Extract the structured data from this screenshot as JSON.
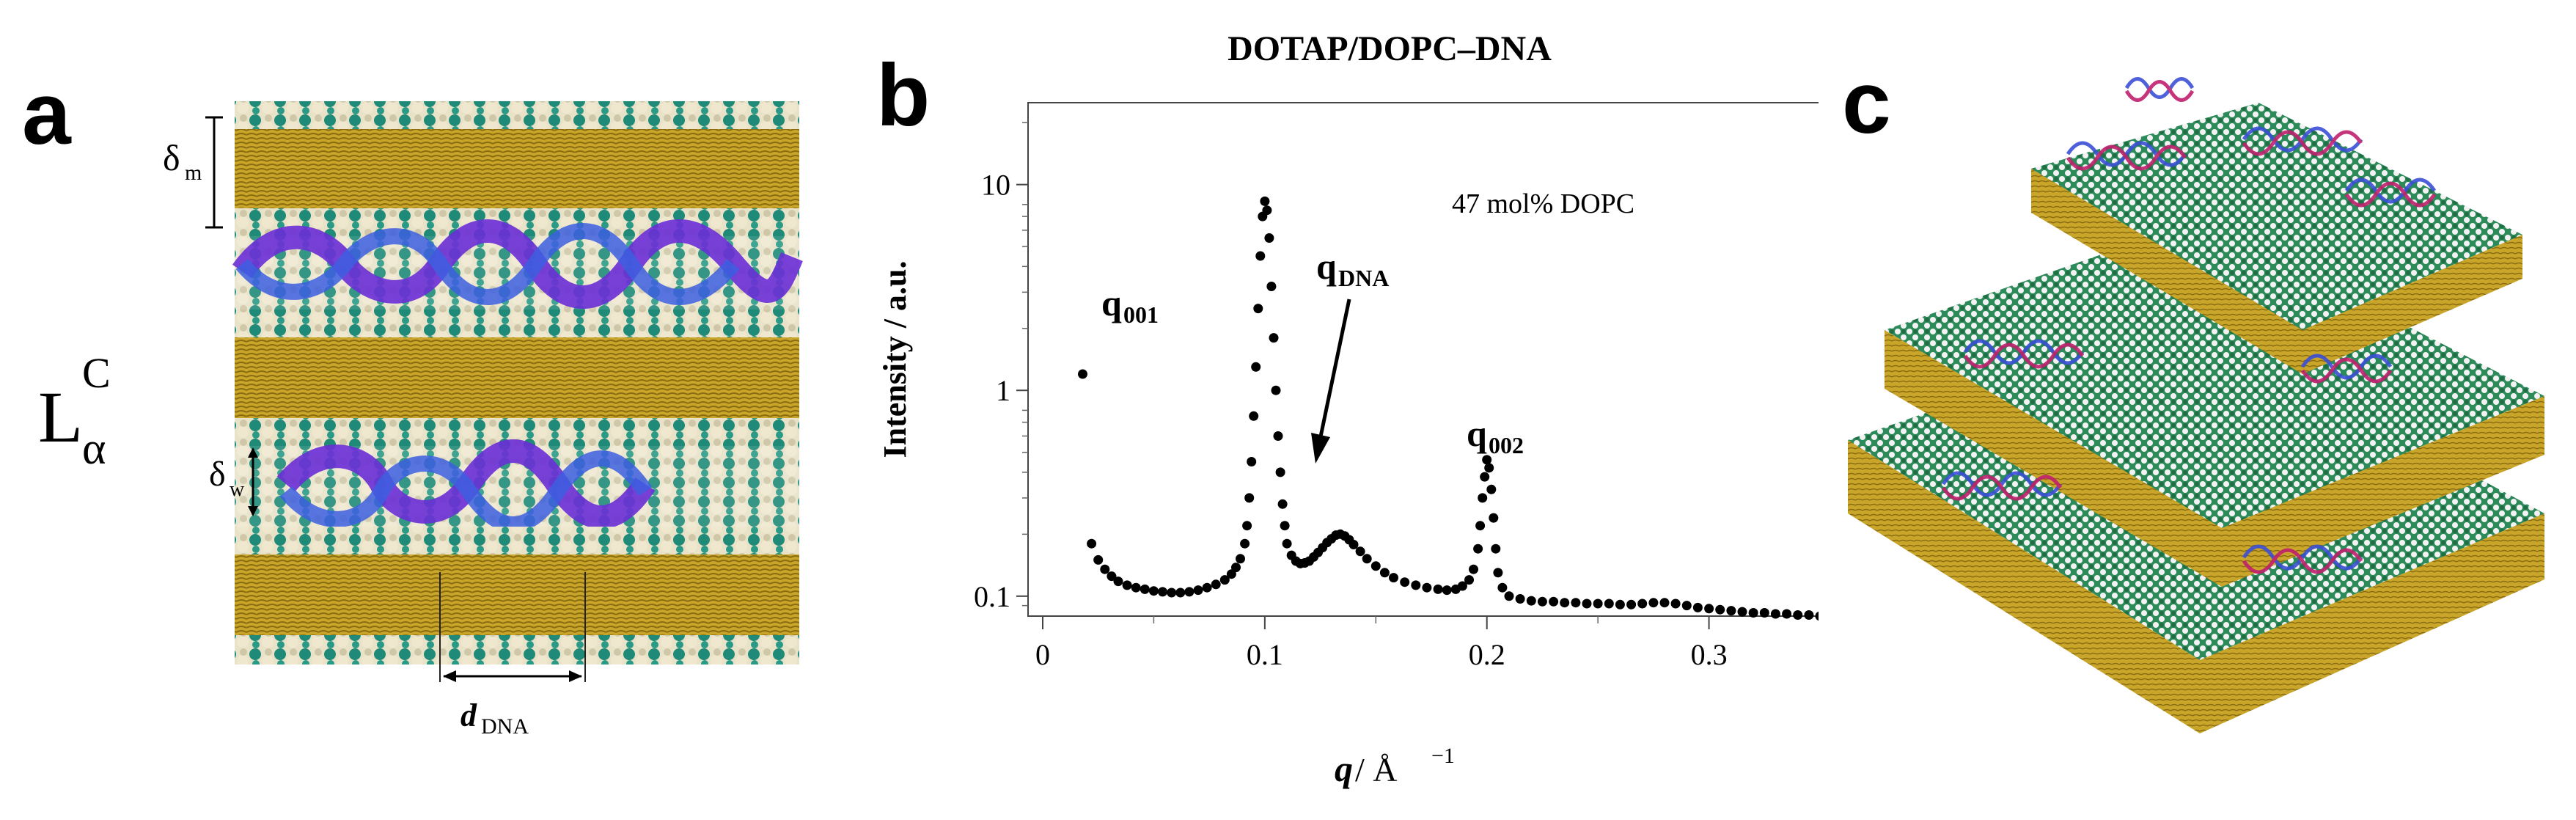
{
  "panels": {
    "a": {
      "letter": "a",
      "phase_main": "L",
      "phase_sub": "α",
      "phase_sup": "C",
      "delta_m_main": "δ",
      "delta_m_sub": "m",
      "delta_w_main": "δ",
      "delta_w_sub": "w",
      "d_dna_main": "d",
      "d_dna_sub": "DNA"
    },
    "b": {
      "letter": "b",
      "title": "DOTAP/DOPC–DNA",
      "annotation": "47 mol% DOPC",
      "peak_q001_main": "q",
      "peak_q001_sub": "001",
      "peak_qdna_main": "q",
      "peak_qdna_sub": "DNA",
      "peak_q002_main": "q",
      "peak_q002_sub": "002",
      "ylabel": "Intensity / a.u.",
      "xlabel_main": "q",
      "xlabel_unit": " / Å",
      "xlabel_exp": "−1"
    },
    "c": {
      "letter": "c"
    }
  },
  "chart_data": {
    "type": "scatter",
    "title": "DOTAP/DOPC–DNA",
    "xlabel": "q / Å−1",
    "ylabel": "Intensity / a.u.",
    "yscale": "log",
    "xlim": [
      0,
      0.35
    ],
    "ylim": [
      0.08,
      25
    ],
    "x_ticks": [
      "0",
      "0.1",
      "0.2",
      "0.3"
    ],
    "y_ticks": [
      "0.1",
      "1",
      "10"
    ],
    "annotations": [
      "47 mol% DOPC",
      "q001",
      "qDNA",
      "q002"
    ],
    "series": [
      {
        "points": [
          [
            0.018,
            1.2
          ],
          [
            0.022,
            0.18
          ],
          [
            0.025,
            0.15
          ],
          [
            0.028,
            0.135
          ],
          [
            0.031,
            0.125
          ],
          [
            0.034,
            0.118
          ],
          [
            0.038,
            0.113
          ],
          [
            0.042,
            0.11
          ],
          [
            0.046,
            0.108
          ],
          [
            0.05,
            0.106
          ],
          [
            0.054,
            0.105
          ],
          [
            0.058,
            0.104
          ],
          [
            0.062,
            0.104
          ],
          [
            0.066,
            0.105
          ],
          [
            0.07,
            0.107
          ],
          [
            0.074,
            0.11
          ],
          [
            0.078,
            0.114
          ],
          [
            0.082,
            0.12
          ],
          [
            0.085,
            0.128
          ],
          [
            0.087,
            0.138
          ],
          [
            0.089,
            0.152
          ],
          [
            0.091,
            0.18
          ],
          [
            0.092,
            0.22
          ],
          [
            0.093,
            0.3
          ],
          [
            0.094,
            0.45
          ],
          [
            0.095,
            0.75
          ],
          [
            0.096,
            1.3
          ],
          [
            0.097,
            2.5
          ],
          [
            0.098,
            4.5
          ],
          [
            0.099,
            7.0
          ],
          [
            0.1,
            8.3
          ],
          [
            0.101,
            7.5
          ],
          [
            0.102,
            5.5
          ],
          [
            0.103,
            3.2
          ],
          [
            0.104,
            1.8
          ],
          [
            0.105,
            1.0
          ],
          [
            0.106,
            0.6
          ],
          [
            0.107,
            0.4
          ],
          [
            0.108,
            0.28
          ],
          [
            0.109,
            0.22
          ],
          [
            0.11,
            0.18
          ],
          [
            0.112,
            0.158
          ],
          [
            0.114,
            0.148
          ],
          [
            0.116,
            0.144
          ],
          [
            0.118,
            0.145
          ],
          [
            0.12,
            0.148
          ],
          [
            0.122,
            0.155
          ],
          [
            0.124,
            0.163
          ],
          [
            0.126,
            0.172
          ],
          [
            0.128,
            0.182
          ],
          [
            0.13,
            0.19
          ],
          [
            0.132,
            0.198
          ],
          [
            0.134,
            0.2
          ],
          [
            0.136,
            0.196
          ],
          [
            0.138,
            0.188
          ],
          [
            0.14,
            0.178
          ],
          [
            0.143,
            0.165
          ],
          [
            0.146,
            0.152
          ],
          [
            0.15,
            0.14
          ],
          [
            0.154,
            0.13
          ],
          [
            0.158,
            0.123
          ],
          [
            0.163,
            0.117
          ],
          [
            0.168,
            0.113
          ],
          [
            0.173,
            0.11
          ],
          [
            0.178,
            0.108
          ],
          [
            0.182,
            0.107
          ],
          [
            0.186,
            0.108
          ],
          [
            0.189,
            0.112
          ],
          [
            0.192,
            0.12
          ],
          [
            0.194,
            0.135
          ],
          [
            0.196,
            0.17
          ],
          [
            0.197,
            0.22
          ],
          [
            0.198,
            0.3
          ],
          [
            0.199,
            0.38
          ],
          [
            0.2,
            0.46
          ],
          [
            0.201,
            0.42
          ],
          [
            0.202,
            0.33
          ],
          [
            0.203,
            0.24
          ],
          [
            0.204,
            0.17
          ],
          [
            0.205,
            0.13
          ],
          [
            0.207,
            0.11
          ],
          [
            0.21,
            0.1
          ],
          [
            0.215,
            0.097
          ],
          [
            0.22,
            0.095
          ],
          [
            0.225,
            0.094
          ],
          [
            0.23,
            0.094
          ],
          [
            0.235,
            0.093
          ],
          [
            0.24,
            0.093
          ],
          [
            0.245,
            0.092
          ],
          [
            0.25,
            0.092
          ],
          [
            0.255,
            0.092
          ],
          [
            0.26,
            0.091
          ],
          [
            0.265,
            0.091
          ],
          [
            0.27,
            0.092
          ],
          [
            0.275,
            0.093
          ],
          [
            0.28,
            0.093
          ],
          [
            0.285,
            0.092
          ],
          [
            0.29,
            0.09
          ],
          [
            0.295,
            0.088
          ],
          [
            0.3,
            0.087
          ],
          [
            0.305,
            0.086
          ],
          [
            0.31,
            0.085
          ],
          [
            0.315,
            0.084
          ],
          [
            0.32,
            0.083
          ],
          [
            0.325,
            0.083
          ],
          [
            0.33,
            0.082
          ],
          [
            0.335,
            0.082
          ],
          [
            0.34,
            0.081
          ],
          [
            0.345,
            0.081
          ],
          [
            0.35,
            0.08
          ]
        ]
      }
    ],
    "colors": {
      "points": "#000000"
    }
  }
}
